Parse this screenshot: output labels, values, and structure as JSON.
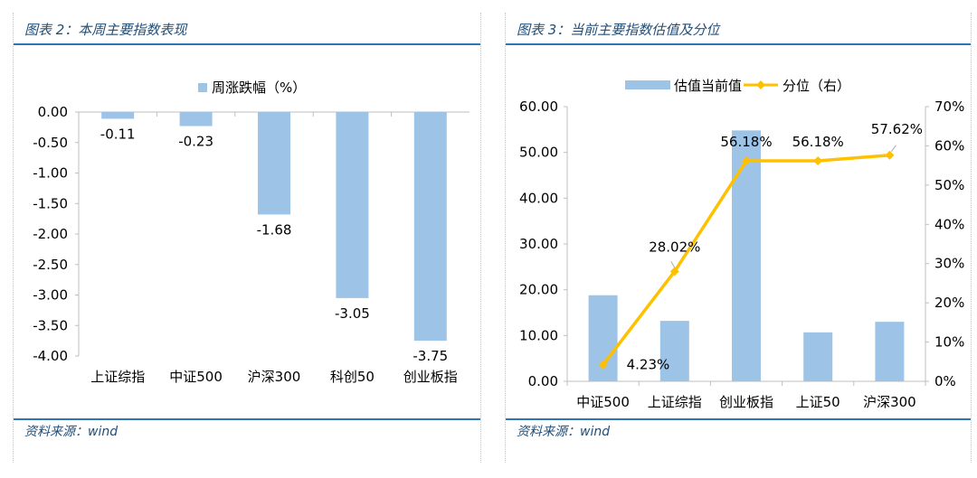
{
  "left_panel": {
    "title": "图表 2：本周主要指数表现",
    "source": "资料来源：wind"
  },
  "right_panel": {
    "title": "图表 3：当前主要指数估值及分位",
    "source": "资料来源：wind"
  },
  "chart_data": [
    {
      "type": "bar",
      "categories": [
        "上证综指",
        "中证500",
        "沪深300",
        "科创50",
        "创业板指"
      ],
      "series": [
        {
          "name": "周涨跌幅（%）",
          "values": [
            -0.11,
            -0.23,
            -1.68,
            -3.05,
            -3.75
          ]
        }
      ],
      "data_labels": [
        "-0.11",
        "-0.23",
        "-1.68",
        "-3.05",
        "-3.75"
      ],
      "ylim": [
        -4.0,
        0.0
      ],
      "yticks": [
        "0.00",
        "-0.50",
        "-1.00",
        "-1.50",
        "-2.00",
        "-2.50",
        "-3.00",
        "-3.50",
        "-4.00"
      ],
      "legend": "top-center",
      "grid": false,
      "colors": {
        "bar": "#9dc3e6"
      }
    },
    {
      "type": "bar",
      "categories": [
        "中证500",
        "上证综指",
        "创业板指",
        "上证50",
        "沪深300"
      ],
      "series": [
        {
          "name": "估值当前值",
          "type": "bar",
          "axis": "left",
          "values": [
            18.8,
            13.2,
            54.8,
            10.7,
            13.0
          ]
        },
        {
          "name": "分位（右）",
          "type": "line",
          "axis": "right",
          "values": [
            4.23,
            28.02,
            56.18,
            56.18,
            57.62
          ]
        }
      ],
      "line_labels": [
        "4.23%",
        "28.02%",
        "56.18%",
        "56.18%",
        "57.62%"
      ],
      "ylim": [
        0,
        60
      ],
      "yticks": [
        "0.00",
        "10.00",
        "20.00",
        "30.00",
        "40.00",
        "50.00",
        "60.00"
      ],
      "y2lim": [
        0,
        70
      ],
      "y2ticks": [
        "0%",
        "10%",
        "20%",
        "30%",
        "40%",
        "50%",
        "60%",
        "70%"
      ],
      "legend": "top-center",
      "grid": false,
      "colors": {
        "bar": "#9dc3e6",
        "line": "#ffc000",
        "marker": "#ffc000"
      }
    }
  ]
}
